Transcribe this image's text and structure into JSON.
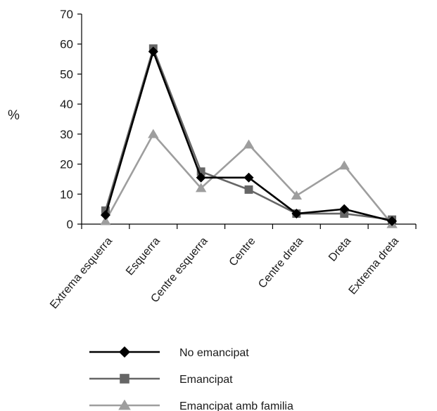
{
  "chart_data": {
    "type": "line",
    "title": "",
    "xlabel": "",
    "ylabel": "%",
    "ylim": [
      0,
      70
    ],
    "yticks": [
      0,
      10,
      20,
      30,
      40,
      50,
      60,
      70
    ],
    "grid": false,
    "legend_position": "bottom",
    "categories": [
      "Extrema esquerra",
      "Esquerra",
      "Centre esquerra",
      "Centre",
      "Centre dreta",
      "Dreta",
      "Extrema dreta"
    ],
    "series": [
      {
        "name": "No emancipat",
        "color": "#000000",
        "marker": "diamond",
        "values": [
          3,
          57.5,
          15.5,
          15.5,
          3.5,
          5,
          1
        ]
      },
      {
        "name": "Emancipat",
        "color": "#666666",
        "marker": "square",
        "values": [
          4.5,
          58.5,
          17.5,
          11.5,
          3.5,
          3.5,
          1.5
        ]
      },
      {
        "name": "Emancipat amb familia",
        "color": "#9e9e9e",
        "marker": "triangle",
        "values": [
          1,
          30,
          12,
          26.5,
          9.5,
          19.5,
          0
        ]
      }
    ]
  }
}
